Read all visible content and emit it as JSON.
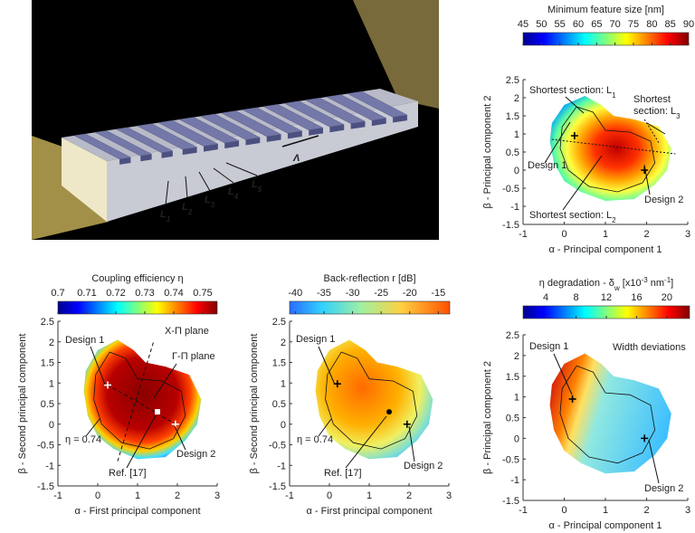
{
  "render": {
    "labels": [
      {
        "base": "L",
        "sub": "1"
      },
      {
        "base": "L",
        "sub": "2"
      },
      {
        "base": "L",
        "sub": "3"
      },
      {
        "base": "L",
        "sub": "4"
      },
      {
        "base": "L",
        "sub": "5"
      }
    ],
    "period_label": "Λ"
  },
  "chart_data": [
    {
      "type": "heatmap",
      "colorbar_title": "Minimum feature size [nm]",
      "colorbar_lim": [
        45,
        90
      ],
      "colorbar_ticks": [
        45,
        50,
        55,
        60,
        65,
        70,
        75,
        80,
        85,
        90
      ],
      "xlim": [
        -1,
        3
      ],
      "xticks": [
        -1,
        0,
        1,
        2,
        3
      ],
      "ylim": [
        -1.5,
        2.5
      ],
      "yticks": [
        -1.5,
        -1,
        -0.5,
        0,
        0.5,
        1,
        1.5,
        2,
        2.5
      ],
      "xlabel": "α - Principal component 1",
      "ylabel": "β - Principal component 2",
      "points": [
        {
          "x": 0.25,
          "y": 0.95,
          "marker": "+",
          "color": "#000000"
        },
        {
          "x": 1.95,
          "y": 0,
          "marker": "+",
          "color": "#000000"
        }
      ],
      "annotations": [
        {
          "text": [
            "Shortest section: L"
          ],
          "sub": "1"
        },
        {
          "text": [
            "Shortest",
            "section: L"
          ],
          "sub": "3"
        },
        {
          "text": [
            "Design 1"
          ]
        },
        {
          "text": [
            "Design 2"
          ]
        },
        {
          "text": [
            "Shortest section: L"
          ],
          "sub": "2"
        }
      ]
    },
    {
      "type": "heatmap",
      "colorbar_title": "Coupling efficiency η",
      "colorbar_lim": [
        0.7,
        0.755
      ],
      "colorbar_ticks": [
        0.7,
        0.71,
        0.72,
        0.73,
        0.74,
        0.75
      ],
      "xlim": [
        -1,
        3
      ],
      "xticks": [
        -1,
        0,
        1,
        2,
        3
      ],
      "ylim": [
        -1.5,
        2.5
      ],
      "yticks": [
        -1.5,
        -1,
        -0.5,
        0,
        0.5,
        1,
        1.5,
        2,
        2.5
      ],
      "xlabel": "α - First principal component",
      "ylabel": "β - Second principal component",
      "points": [
        {
          "x": 0.25,
          "y": 0.95,
          "marker": "+",
          "color": "#ffffff"
        },
        {
          "x": 1.5,
          "y": 0.3,
          "marker": "square",
          "color": "#ffffff"
        },
        {
          "x": 1.95,
          "y": 0,
          "marker": "+",
          "color": "#ffffff"
        }
      ],
      "annotations": [
        {
          "text": [
            "Design 1"
          ]
        },
        {
          "text": [
            "X-Π plane"
          ]
        },
        {
          "text": [
            "Γ-Π plane"
          ]
        },
        {
          "text": [
            "η = 0.74"
          ]
        },
        {
          "text": [
            "Ref. [17]"
          ]
        },
        {
          "text": [
            "Design 2"
          ]
        }
      ]
    },
    {
      "type": "heatmap",
      "colorbar_title": "Back-reflection r [dB]",
      "colorbar_lim": [
        -41,
        -13
      ],
      "colorbar_ticks": [
        -40,
        -35,
        -30,
        -25,
        -20,
        -15
      ],
      "xlim": [
        -1,
        3
      ],
      "xticks": [
        -1,
        0,
        1,
        2,
        3
      ],
      "ylim": [
        -1.5,
        2.5
      ],
      "yticks": [
        -1.5,
        -1,
        -0.5,
        0,
        0.5,
        1,
        1.5,
        2,
        2.5
      ],
      "xlabel": "α - First principal component",
      "ylabel": "β - Second principal component",
      "points": [
        {
          "x": 0.2,
          "y": 0.98,
          "marker": "+",
          "color": "#000000"
        },
        {
          "x": 1.5,
          "y": 0.3,
          "marker": "dot",
          "color": "#000000"
        },
        {
          "x": 1.95,
          "y": 0,
          "marker": "+",
          "color": "#000000"
        }
      ],
      "annotations": [
        {
          "text": [
            "Design 1"
          ]
        },
        {
          "text": [
            "η = 0.74"
          ]
        },
        {
          "text": [
            "Ref. [17]"
          ]
        },
        {
          "text": [
            "Design 2"
          ]
        }
      ]
    },
    {
      "type": "heatmap",
      "colorbar_title": [
        "η degradation - δ",
        "w",
        " [x10",
        "-3",
        " nm",
        "-1",
        "]"
      ],
      "colorbar_title_style": [
        "normal",
        "sub",
        "normal",
        "sup",
        "normal",
        "sup",
        "normal"
      ],
      "colorbar_lim": [
        1,
        23
      ],
      "colorbar_ticks": [
        4,
        8,
        12,
        16,
        20
      ],
      "xlim": [
        -1,
        3
      ],
      "xticks": [
        -1,
        0,
        1,
        2,
        3
      ],
      "ylim": [
        -1.5,
        2.5
      ],
      "yticks": [
        -1.5,
        -1,
        -0.5,
        0,
        0.5,
        1,
        1.5,
        2,
        2.5
      ],
      "xlabel": "α - Principal component 1",
      "ylabel": "β - Principal component 2",
      "points": [
        {
          "x": 0.2,
          "y": 0.95,
          "marker": "+",
          "color": "#000000"
        },
        {
          "x": 1.95,
          "y": 0,
          "marker": "+",
          "color": "#000000"
        }
      ],
      "annotations": [
        {
          "text": [
            "Design 1"
          ]
        },
        {
          "text": [
            "Width deviations"
          ]
        },
        {
          "text": [
            "Design 2"
          ]
        }
      ]
    }
  ]
}
